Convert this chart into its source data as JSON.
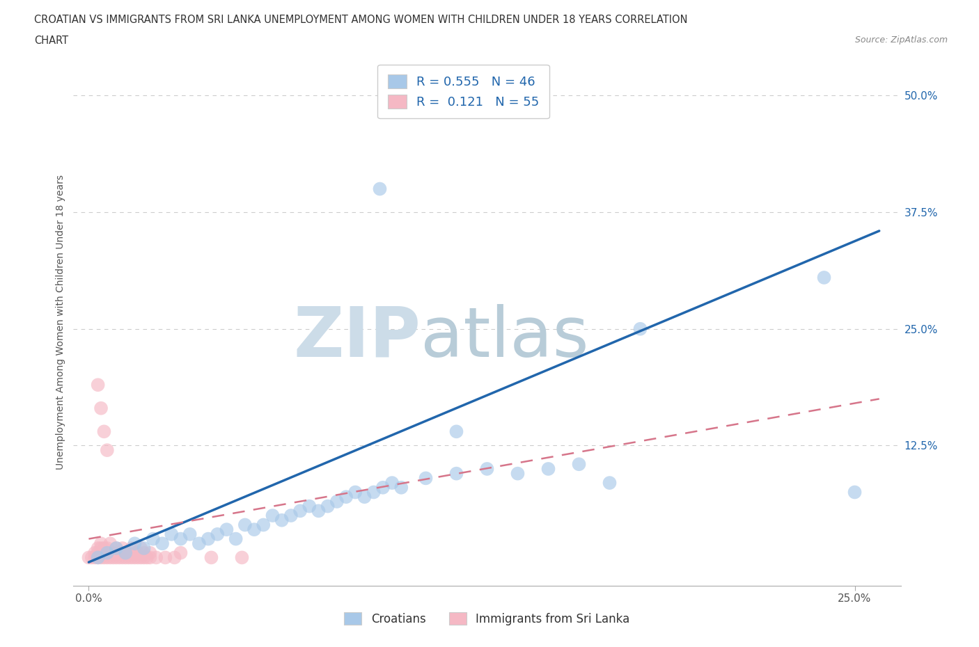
{
  "title_line1": "CROATIAN VS IMMIGRANTS FROM SRI LANKA UNEMPLOYMENT AMONG WOMEN WITH CHILDREN UNDER 18 YEARS CORRELATION",
  "title_line2": "CHART",
  "source_text": "Source: ZipAtlas.com",
  "ylabel": "Unemployment Among Women with Children Under 18 years",
  "xlim": [
    -0.005,
    0.265
  ],
  "ylim": [
    -0.025,
    0.54
  ],
  "blue_R": "R = 0.555",
  "blue_N": "N = 46",
  "pink_R": "R =  0.121",
  "pink_N": "N = 55",
  "blue_scatter": [
    [
      0.003,
      0.005
    ],
    [
      0.006,
      0.01
    ],
    [
      0.009,
      0.015
    ],
    [
      0.012,
      0.01
    ],
    [
      0.015,
      0.02
    ],
    [
      0.018,
      0.015
    ],
    [
      0.021,
      0.025
    ],
    [
      0.024,
      0.02
    ],
    [
      0.027,
      0.03
    ],
    [
      0.03,
      0.025
    ],
    [
      0.033,
      0.03
    ],
    [
      0.036,
      0.02
    ],
    [
      0.039,
      0.025
    ],
    [
      0.042,
      0.03
    ],
    [
      0.045,
      0.035
    ],
    [
      0.048,
      0.025
    ],
    [
      0.051,
      0.04
    ],
    [
      0.054,
      0.035
    ],
    [
      0.057,
      0.04
    ],
    [
      0.06,
      0.05
    ],
    [
      0.063,
      0.045
    ],
    [
      0.066,
      0.05
    ],
    [
      0.069,
      0.055
    ],
    [
      0.072,
      0.06
    ],
    [
      0.075,
      0.055
    ],
    [
      0.078,
      0.06
    ],
    [
      0.081,
      0.065
    ],
    [
      0.084,
      0.07
    ],
    [
      0.087,
      0.075
    ],
    [
      0.09,
      0.07
    ],
    [
      0.093,
      0.075
    ],
    [
      0.096,
      0.08
    ],
    [
      0.099,
      0.085
    ],
    [
      0.102,
      0.08
    ],
    [
      0.11,
      0.09
    ],
    [
      0.12,
      0.095
    ],
    [
      0.13,
      0.1
    ],
    [
      0.14,
      0.095
    ],
    [
      0.15,
      0.1
    ],
    [
      0.16,
      0.105
    ],
    [
      0.17,
      0.085
    ],
    [
      0.18,
      0.25
    ],
    [
      0.095,
      0.4
    ],
    [
      0.12,
      0.14
    ],
    [
      0.24,
      0.305
    ],
    [
      0.25,
      0.075
    ]
  ],
  "pink_scatter": [
    [
      0.0,
      0.005
    ],
    [
      0.001,
      0.005
    ],
    [
      0.002,
      0.005
    ],
    [
      0.002,
      0.01
    ],
    [
      0.003,
      0.005
    ],
    [
      0.003,
      0.01
    ],
    [
      0.003,
      0.015
    ],
    [
      0.004,
      0.005
    ],
    [
      0.004,
      0.01
    ],
    [
      0.004,
      0.015
    ],
    [
      0.004,
      0.02
    ],
    [
      0.005,
      0.005
    ],
    [
      0.005,
      0.01
    ],
    [
      0.005,
      0.015
    ],
    [
      0.006,
      0.005
    ],
    [
      0.006,
      0.01
    ],
    [
      0.006,
      0.015
    ],
    [
      0.007,
      0.005
    ],
    [
      0.007,
      0.01
    ],
    [
      0.007,
      0.02
    ],
    [
      0.008,
      0.005
    ],
    [
      0.008,
      0.01
    ],
    [
      0.009,
      0.005
    ],
    [
      0.009,
      0.015
    ],
    [
      0.01,
      0.005
    ],
    [
      0.01,
      0.01
    ],
    [
      0.011,
      0.005
    ],
    [
      0.011,
      0.015
    ],
    [
      0.012,
      0.005
    ],
    [
      0.012,
      0.01
    ],
    [
      0.013,
      0.005
    ],
    [
      0.013,
      0.01
    ],
    [
      0.014,
      0.005
    ],
    [
      0.014,
      0.015
    ],
    [
      0.015,
      0.005
    ],
    [
      0.015,
      0.01
    ],
    [
      0.016,
      0.005
    ],
    [
      0.016,
      0.01
    ],
    [
      0.017,
      0.005
    ],
    [
      0.017,
      0.015
    ],
    [
      0.018,
      0.005
    ],
    [
      0.018,
      0.01
    ],
    [
      0.019,
      0.005
    ],
    [
      0.02,
      0.005
    ],
    [
      0.02,
      0.01
    ],
    [
      0.022,
      0.005
    ],
    [
      0.025,
      0.005
    ],
    [
      0.028,
      0.005
    ],
    [
      0.03,
      0.01
    ],
    [
      0.003,
      0.19
    ],
    [
      0.004,
      0.165
    ],
    [
      0.005,
      0.14
    ],
    [
      0.006,
      0.12
    ],
    [
      0.04,
      0.005
    ],
    [
      0.05,
      0.005
    ]
  ],
  "blue_line_x": [
    0.0,
    0.258
  ],
  "blue_line_y": [
    0.0,
    0.355
  ],
  "pink_line_x": [
    0.0,
    0.258
  ],
  "pink_line_y": [
    0.025,
    0.175
  ],
  "bg_color": "#ffffff",
  "blue_scatter_color": "#a8c8e8",
  "pink_scatter_color": "#f5b8c4",
  "blue_line_color": "#2166ac",
  "pink_line_color": "#d6758a",
  "grid_color": "#cccccc",
  "watermark_color": "#dce8f0"
}
